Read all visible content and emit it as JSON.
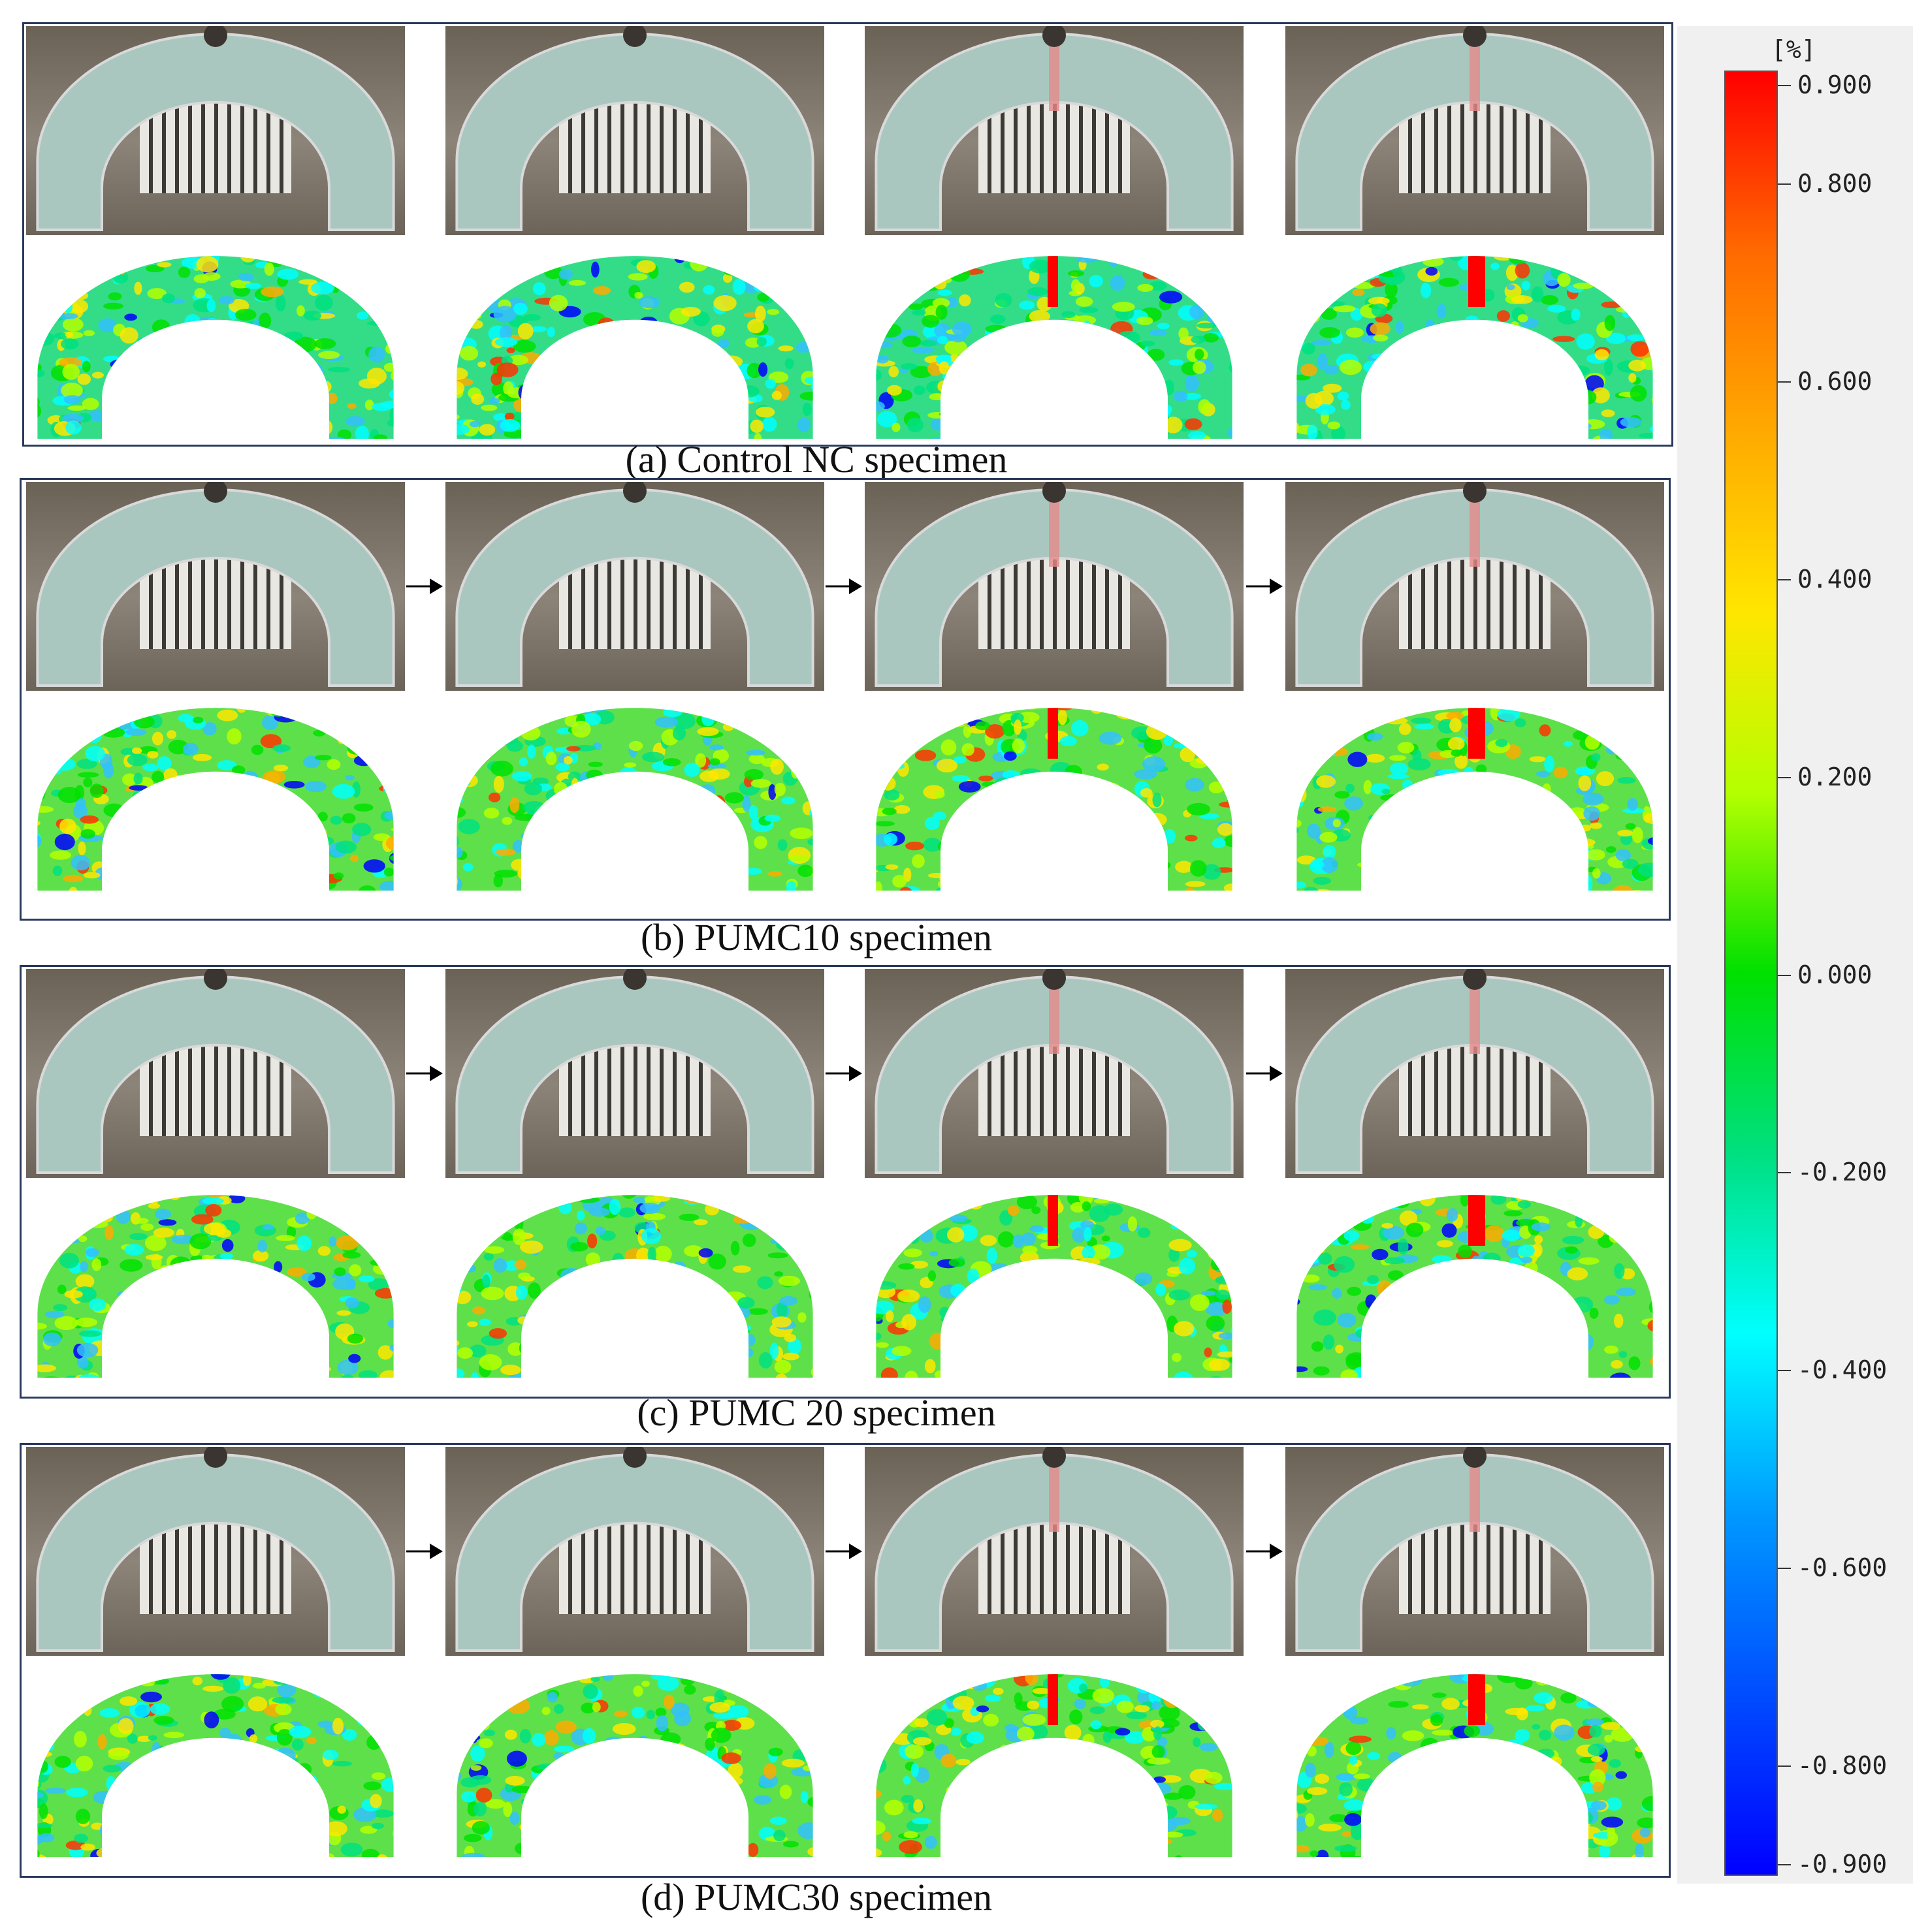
{
  "panels": [
    {
      "caption": "(a) Control NC specimen",
      "arrows": false
    },
    {
      "caption": "(b) PUMC10  specimen",
      "arrows": true
    },
    {
      "caption": "(c) PUMC 20  specimen",
      "arrows": true
    },
    {
      "caption": "(d) PUMC30  specimen",
      "arrows": true
    }
  ],
  "colorbar": {
    "unit": "[%]",
    "ticks": [
      "0.900",
      "0.800",
      "0.600",
      "0.400",
      "0.200",
      "0.000",
      "-0.200",
      "-0.400",
      "-0.600",
      "-0.800",
      "-0.900"
    ],
    "colors": [
      "#ff0000",
      "#ff6a00",
      "#ffaa00",
      "#ffe600",
      "#b4ff00",
      "#00e000",
      "#00e080",
      "#00ffff",
      "#0099ff",
      "#0000ff"
    ]
  }
}
